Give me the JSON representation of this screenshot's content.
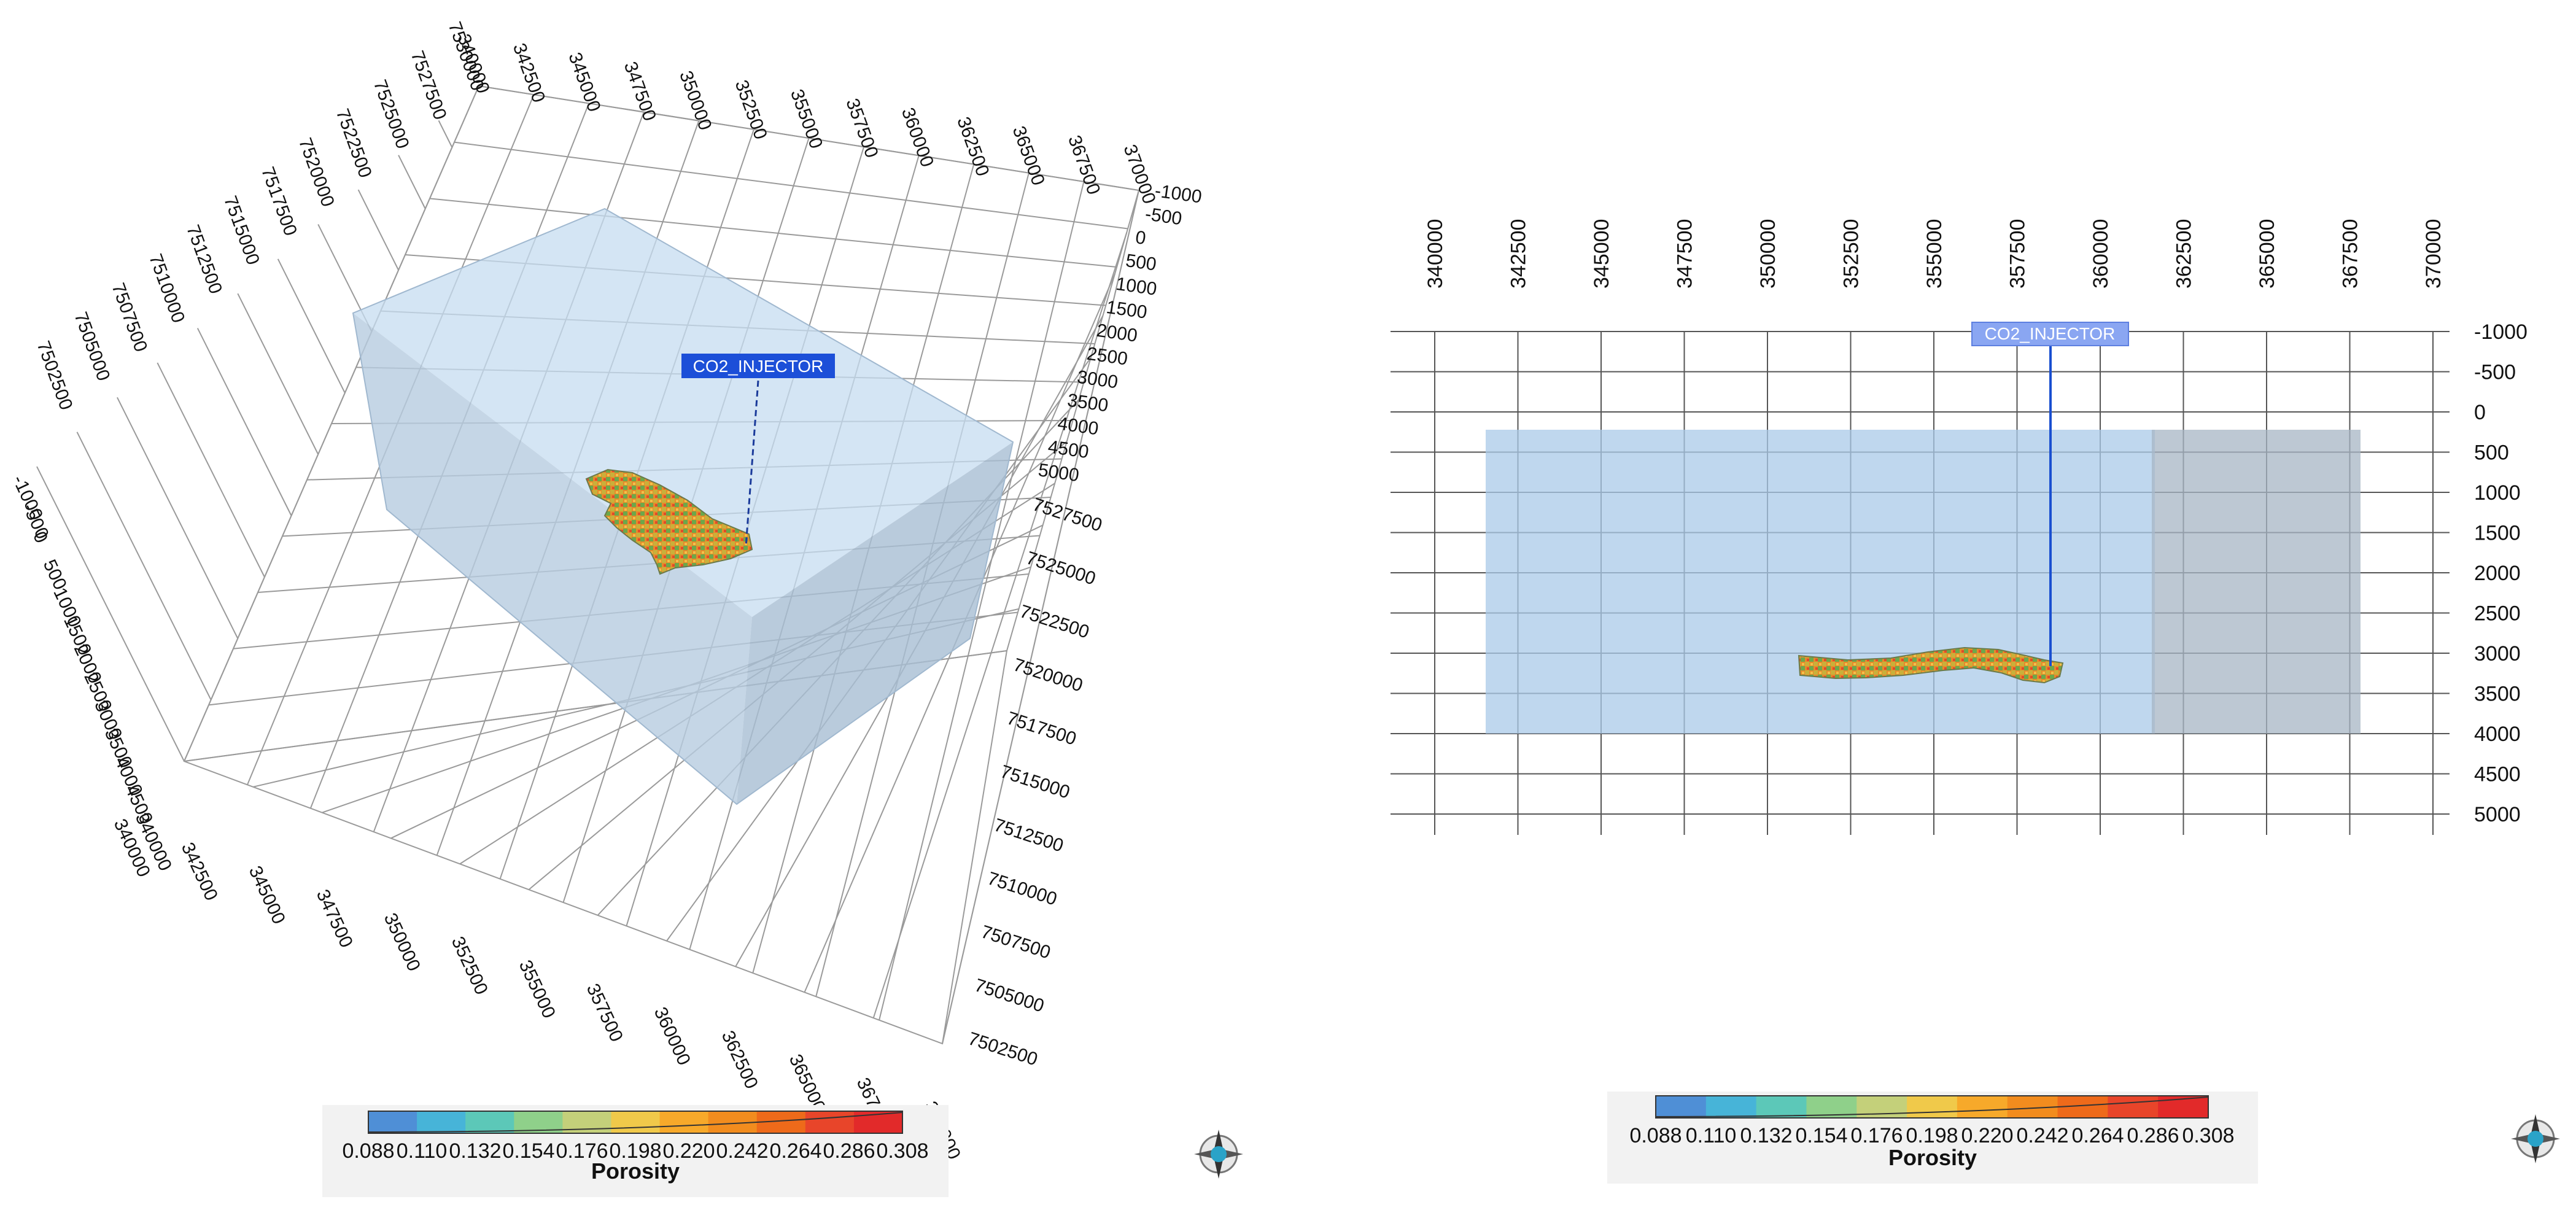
{
  "left_view": {
    "x_ticks": [
      "340000",
      "342500",
      "345000",
      "347500",
      "350000",
      "352500",
      "355000",
      "357500",
      "360000",
      "362500",
      "365000",
      "367500",
      "370000"
    ],
    "x_ticks_far": [
      "340000",
      "342500",
      "345000",
      "347500",
      "350000",
      "352500",
      "355000",
      "357500",
      "360000",
      "362500",
      "365000",
      "367500",
      "370000"
    ],
    "y_ticks_near": [
      "7527500",
      "7525000",
      "7522500",
      "7520000",
      "7517500",
      "7515000",
      "7512500",
      "7510000",
      "7507500",
      "7505000",
      "7502500"
    ],
    "y_ticks_far": [
      "7502500",
      "7505000",
      "7507500",
      "7510000",
      "7512500",
      "7515000",
      "7517500",
      "7520000",
      "7522500",
      "7525000",
      "7527500",
      "7530000"
    ],
    "depth_ticks_right": [
      "-1000",
      "-500",
      "0",
      "500",
      "1000",
      "1500",
      "2000",
      "2500",
      "3000",
      "3500",
      "4000",
      "4500",
      "5000"
    ],
    "depth_ticks_left": [
      "-1000",
      "-500",
      "0",
      "500",
      "1000",
      "1500",
      "2000",
      "2500",
      "3000",
      "3500",
      "4000",
      "4500",
      "340000"
    ],
    "well_label": "CO2_INJECTOR"
  },
  "right_view": {
    "x_ticks": [
      "340000",
      "342500",
      "345000",
      "347500",
      "350000",
      "352500",
      "355000",
      "357500",
      "360000",
      "362500",
      "365000",
      "367500",
      "370000"
    ],
    "depth_ticks": [
      "-1000",
      "-500",
      "0",
      "500",
      "1000",
      "1500",
      "2000",
      "2500",
      "3000",
      "3500",
      "4000",
      "4500",
      "5000"
    ],
    "well_label": "CO2_INJECTOR"
  },
  "colorbar": {
    "title": "Porosity",
    "labels": [
      "0.088",
      "0.110",
      "0.132",
      "0.154",
      "0.176",
      "0.198",
      "0.220",
      "0.242",
      "0.264",
      "0.286",
      "0.308"
    ],
    "colors": [
      "#4f8fd6",
      "#47b4d8",
      "#5cc8b8",
      "#8fd08a",
      "#c4d07a",
      "#f0c94a",
      "#f7a92a",
      "#f28c1e",
      "#ee6a1a",
      "#e8452a",
      "#e22a2a"
    ]
  },
  "colors": {
    "volume_fill": "#a9c9e8",
    "grid": "#8a8a8a",
    "well_label_bg": "#1c4fd8",
    "well_label_bg_light": "#7f9cf0"
  },
  "icons": [
    "compass-icon-left",
    "compass-icon-right"
  ]
}
